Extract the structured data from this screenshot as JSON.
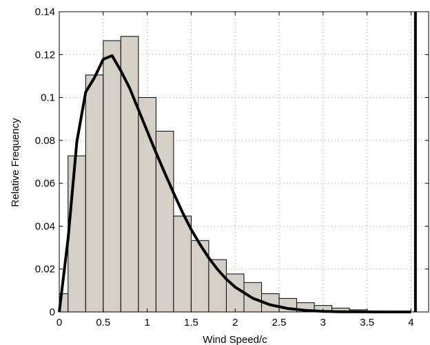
{
  "chart_data": {
    "type": "bar",
    "xlabel": "Wind Speed/c",
    "ylabel": "Relative Frequency",
    "xlim": [
      0,
      4.2
    ],
    "ylim": [
      0,
      0.14
    ],
    "xticks": [
      0,
      0.5,
      1,
      1.5,
      2,
      2.5,
      3,
      3.5,
      4
    ],
    "xtick_labels": [
      "0",
      "0.5",
      "1",
      "1.5",
      "2",
      "2.5",
      "3",
      "3.5",
      "4"
    ],
    "yticks": [
      0,
      0.02,
      0.04,
      0.06,
      0.08,
      0.1,
      0.12,
      0.14
    ],
    "ytick_labels": [
      "0",
      "0.02",
      "0.04",
      "0.06",
      "0.08",
      "0.1",
      "0.12",
      "0.14"
    ],
    "grid": true,
    "bar_color": "#d4d0c8",
    "line_color": "#000000",
    "histogram": {
      "bin_width": 0.2,
      "bin_starts": [
        -0.1,
        0.1,
        0.3,
        0.5,
        0.7,
        0.9,
        1.1,
        1.3,
        1.5,
        1.7,
        1.9,
        2.1,
        2.3,
        2.5,
        2.7,
        2.9,
        3.1,
        3.3,
        3.5,
        3.7
      ],
      "values": [
        0.0085,
        0.0728,
        0.1105,
        0.1265,
        0.1285,
        0.1,
        0.0843,
        0.0447,
        0.0333,
        0.0244,
        0.0177,
        0.0137,
        0.0085,
        0.0063,
        0.0043,
        0.003,
        0.0018,
        0.001,
        0.0005,
        0.0003
      ]
    },
    "fit_curve": {
      "x": [
        0,
        0.1,
        0.2,
        0.3,
        0.4,
        0.5,
        0.6,
        0.7,
        0.8,
        0.9,
        1.0,
        1.1,
        1.2,
        1.3,
        1.4,
        1.5,
        1.6,
        1.7,
        1.8,
        1.9,
        2.0,
        2.2,
        2.4,
        2.6,
        2.8,
        3.0,
        3.2,
        3.4,
        3.6,
        3.8,
        4.0
      ],
      "y": [
        0,
        0.0342,
        0.0793,
        0.1025,
        0.1092,
        0.1178,
        0.1195,
        0.1125,
        0.1044,
        0.0943,
        0.0843,
        0.0743,
        0.0648,
        0.0555,
        0.0465,
        0.0385,
        0.0315,
        0.0252,
        0.0198,
        0.0153,
        0.0116,
        0.0064,
        0.0033,
        0.0016,
        0.0007,
        0.0003,
        0.0001,
        0.0001,
        0,
        0,
        0
      ]
    },
    "vertical_line_x": 4.05
  }
}
